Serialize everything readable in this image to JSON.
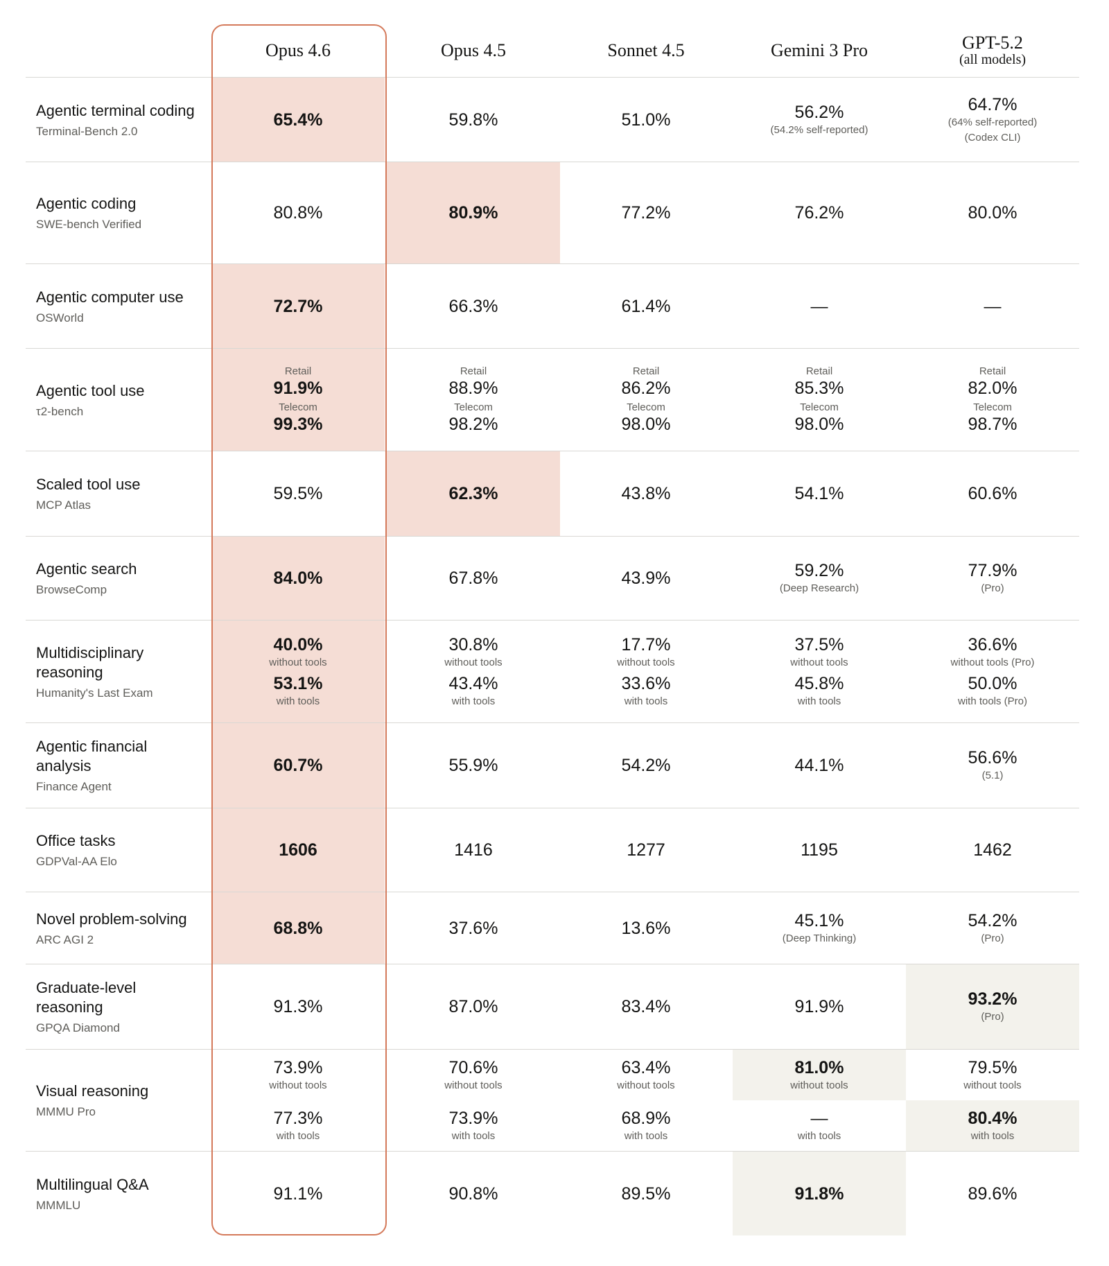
{
  "colors": {
    "highlight_primary": "#f5ddd5",
    "highlight_secondary": "#f3f2ec",
    "focus_border": "#d4795a"
  },
  "columns": [
    {
      "name": "Opus 4.6",
      "sub": ""
    },
    {
      "name": "Opus 4.5",
      "sub": ""
    },
    {
      "name": "Sonnet 4.5",
      "sub": ""
    },
    {
      "name": "Gemini 3 Pro",
      "sub": ""
    },
    {
      "name": "GPT-5.2",
      "sub": "(all models)"
    }
  ],
  "rows": [
    {
      "title": "Agentic terminal coding",
      "bench": "Terminal-Bench 2.0",
      "cells": [
        {
          "hl": "pink",
          "items": [
            {
              "value": "65.4%"
            }
          ]
        },
        {
          "items": [
            {
              "value": "59.8%"
            }
          ]
        },
        {
          "items": [
            {
              "value": "51.0%"
            }
          ]
        },
        {
          "items": [
            {
              "value": "56.2%",
              "note": "(54.2% self-reported)"
            }
          ]
        },
        {
          "items": [
            {
              "value": "64.7%",
              "note": "(64% self-reported)",
              "note2": "(Codex CLI)"
            }
          ]
        }
      ]
    },
    {
      "title": "Agentic coding",
      "bench": "SWE-bench Verified",
      "cells": [
        {
          "items": [
            {
              "value": "80.8%"
            }
          ]
        },
        {
          "hl": "pink",
          "items": [
            {
              "value": "80.9%"
            }
          ]
        },
        {
          "items": [
            {
              "value": "77.2%"
            }
          ]
        },
        {
          "items": [
            {
              "value": "76.2%"
            }
          ]
        },
        {
          "items": [
            {
              "value": "80.0%"
            }
          ]
        }
      ]
    },
    {
      "title": "Agentic computer use",
      "bench": "OSWorld",
      "cells": [
        {
          "hl": "pink",
          "items": [
            {
              "value": "72.7%"
            }
          ]
        },
        {
          "items": [
            {
              "value": "66.3%"
            }
          ]
        },
        {
          "items": [
            {
              "value": "61.4%"
            }
          ]
        },
        {
          "items": [
            {
              "value": "—"
            }
          ]
        },
        {
          "items": [
            {
              "value": "—"
            }
          ]
        }
      ]
    },
    {
      "title": "Agentic tool use",
      "bench": "τ2-bench",
      "cells": [
        {
          "hl": "pink",
          "items": [
            {
              "label": "Retail",
              "value": "91.9%"
            },
            {
              "label": "Telecom",
              "value": "99.3%"
            }
          ]
        },
        {
          "items": [
            {
              "label": "Retail",
              "value": "88.9%"
            },
            {
              "label": "Telecom",
              "value": "98.2%"
            }
          ]
        },
        {
          "items": [
            {
              "label": "Retail",
              "value": "86.2%"
            },
            {
              "label": "Telecom",
              "value": "98.0%"
            }
          ]
        },
        {
          "items": [
            {
              "label": "Retail",
              "value": "85.3%"
            },
            {
              "label": "Telecom",
              "value": "98.0%"
            }
          ]
        },
        {
          "items": [
            {
              "label": "Retail",
              "value": "82.0%"
            },
            {
              "label": "Telecom",
              "value": "98.7%"
            }
          ]
        }
      ]
    },
    {
      "title": "Scaled tool use",
      "bench": "MCP Atlas",
      "cells": [
        {
          "items": [
            {
              "value": "59.5%"
            }
          ]
        },
        {
          "hl": "pink",
          "items": [
            {
              "value": "62.3%"
            }
          ]
        },
        {
          "items": [
            {
              "value": "43.8%"
            }
          ]
        },
        {
          "items": [
            {
              "value": "54.1%"
            }
          ]
        },
        {
          "items": [
            {
              "value": "60.6%"
            }
          ]
        }
      ]
    },
    {
      "title": "Agentic search",
      "bench": "BrowseComp",
      "cells": [
        {
          "hl": "pink",
          "items": [
            {
              "value": "84.0%"
            }
          ]
        },
        {
          "items": [
            {
              "value": "67.8%"
            }
          ]
        },
        {
          "items": [
            {
              "value": "43.9%"
            }
          ]
        },
        {
          "items": [
            {
              "value": "59.2%",
              "note": "(Deep Research)"
            }
          ]
        },
        {
          "items": [
            {
              "value": "77.9%",
              "note": "(Pro)"
            }
          ]
        }
      ]
    },
    {
      "title": "Multidisciplinary reasoning",
      "bench": "Humanity's Last Exam",
      "cells": [
        {
          "hl": "pink",
          "items": [
            {
              "value": "40.0%",
              "note": "without tools"
            },
            {
              "value": "53.1%",
              "note": "with tools"
            }
          ]
        },
        {
          "items": [
            {
              "value": "30.8%",
              "note": "without tools"
            },
            {
              "value": "43.4%",
              "note": "with tools"
            }
          ]
        },
        {
          "items": [
            {
              "value": "17.7%",
              "note": "without tools"
            },
            {
              "value": "33.6%",
              "note": "with tools"
            }
          ]
        },
        {
          "items": [
            {
              "value": "37.5%",
              "note": "without tools"
            },
            {
              "value": "45.8%",
              "note": "with tools"
            }
          ]
        },
        {
          "items": [
            {
              "value": "36.6%",
              "note": "without tools (Pro)"
            },
            {
              "value": "50.0%",
              "note": "with tools (Pro)"
            }
          ]
        }
      ]
    },
    {
      "title": "Agentic financial analysis",
      "bench": "Finance Agent",
      "cells": [
        {
          "hl": "pink",
          "items": [
            {
              "value": "60.7%"
            }
          ]
        },
        {
          "items": [
            {
              "value": "55.9%"
            }
          ]
        },
        {
          "items": [
            {
              "value": "54.2%"
            }
          ]
        },
        {
          "items": [
            {
              "value": "44.1%"
            }
          ]
        },
        {
          "items": [
            {
              "value": "56.6%",
              "note": "(5.1)"
            }
          ]
        }
      ]
    },
    {
      "title": "Office tasks",
      "bench": "GDPVal-AA Elo",
      "cells": [
        {
          "hl": "pink",
          "items": [
            {
              "value": "1606"
            }
          ]
        },
        {
          "items": [
            {
              "value": "1416"
            }
          ]
        },
        {
          "items": [
            {
              "value": "1277"
            }
          ]
        },
        {
          "items": [
            {
              "value": "1195"
            }
          ]
        },
        {
          "items": [
            {
              "value": "1462"
            }
          ]
        }
      ]
    },
    {
      "title": "Novel problem-solving",
      "bench": "ARC AGI 2",
      "cells": [
        {
          "hl": "pink",
          "items": [
            {
              "value": "68.8%"
            }
          ]
        },
        {
          "items": [
            {
              "value": "37.6%"
            }
          ]
        },
        {
          "items": [
            {
              "value": "13.6%"
            }
          ]
        },
        {
          "items": [
            {
              "value": "45.1%",
              "note": "(Deep Thinking)"
            }
          ]
        },
        {
          "items": [
            {
              "value": "54.2%",
              "note": "(Pro)"
            }
          ]
        }
      ]
    },
    {
      "title": "Graduate-level reasoning",
      "bench": "GPQA Diamond",
      "cells": [
        {
          "items": [
            {
              "value": "91.3%"
            }
          ]
        },
        {
          "items": [
            {
              "value": "87.0%"
            }
          ]
        },
        {
          "items": [
            {
              "value": "83.4%"
            }
          ]
        },
        {
          "items": [
            {
              "value": "91.9%"
            }
          ]
        },
        {
          "hl": "beige",
          "items": [
            {
              "value": "93.2%",
              "note": "(Pro)"
            }
          ]
        }
      ]
    },
    {
      "title": "Visual reasoning",
      "bench": "MMMU Pro",
      "split": true,
      "cells": [
        {
          "items": [
            {
              "value": "73.9%",
              "note": "without tools"
            },
            {
              "value": "77.3%",
              "note": "with tools"
            }
          ]
        },
        {
          "items": [
            {
              "value": "70.6%",
              "note": "without tools"
            },
            {
              "value": "73.9%",
              "note": "with tools"
            }
          ]
        },
        {
          "items": [
            {
              "value": "63.4%",
              "note": "without tools"
            },
            {
              "value": "68.9%",
              "note": "with tools"
            }
          ]
        },
        {
          "items": [
            {
              "value": "81.0%",
              "note": "without tools",
              "hl": "beige"
            },
            {
              "value": "—",
              "note": "with tools"
            }
          ]
        },
        {
          "items": [
            {
              "value": "79.5%",
              "note": "without tools"
            },
            {
              "value": "80.4%",
              "note": "with tools",
              "hl": "beige"
            }
          ]
        }
      ]
    },
    {
      "title": "Multilingual Q&A",
      "bench": "MMMLU",
      "cells": [
        {
          "items": [
            {
              "value": "91.1%"
            }
          ]
        },
        {
          "items": [
            {
              "value": "90.8%"
            }
          ]
        },
        {
          "items": [
            {
              "value": "89.5%"
            }
          ]
        },
        {
          "hl": "beige",
          "items": [
            {
              "value": "91.8%"
            }
          ]
        },
        {
          "items": [
            {
              "value": "89.6%"
            }
          ]
        }
      ]
    }
  ]
}
